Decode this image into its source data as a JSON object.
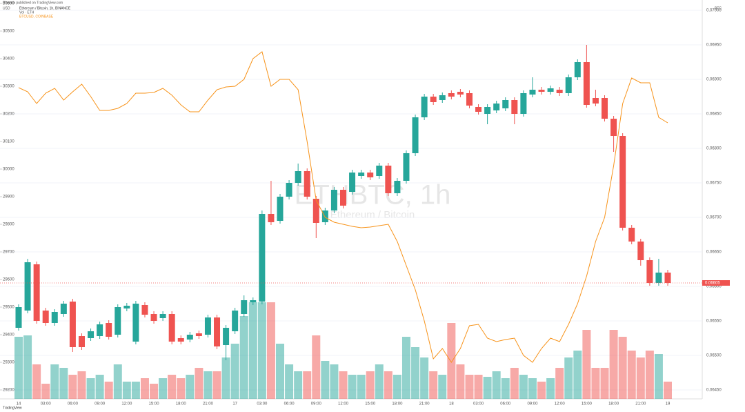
{
  "chart_data": {
    "type": "candlestick",
    "published": "Phoenix published on TradingView.com",
    "title": "Ethereum / Bitcoin, 1h, BINANCE",
    "volume_label": "Vol · ETH",
    "watermark": "ETHBTC, 1h",
    "watermark_sub": "Ethereum / Bitcoin",
    "y_label": "BTC",
    "y2_label": "USD",
    "brand": "TradingView",
    "categories": [
      "14",
      null,
      null,
      "03:00",
      null,
      null,
      "06:00",
      null,
      null,
      "09:00",
      null,
      null,
      "12:00",
      null,
      null,
      "15:00",
      null,
      null,
      "18:00",
      null,
      null,
      "21:00",
      null,
      null,
      "17",
      null,
      null,
      "03:00",
      null,
      null,
      "06:00",
      null,
      null,
      "09:00",
      null,
      null,
      "12:00",
      null,
      null,
      "15:00",
      null,
      null,
      "18:00",
      null,
      null,
      "21:00",
      null,
      null,
      "18",
      null,
      null,
      "03:00",
      null,
      null,
      "06:00",
      null,
      null,
      "09:00",
      null,
      null,
      "12:00",
      null,
      null,
      "15:00",
      null,
      null,
      "18:00",
      null,
      null,
      "21:00",
      null,
      null,
      "19"
    ],
    "open": [
      0.0654,
      0.06565,
      0.06632,
      0.06565,
      0.06547,
      0.0656,
      0.06578,
      0.06528,
      0.06525,
      0.06528,
      0.06547,
      0.0653,
      0.06568,
      0.0652,
      0.06573,
      0.0656,
      0.06554,
      0.0656,
      0.06525,
      0.06523,
      0.06532,
      0.0653,
      0.06555,
      0.06515,
      0.06535,
      0.0656,
      0.06577,
      0.06578,
      0.06705,
      0.06695,
      0.0673,
      0.0675,
      0.06767,
      0.06727,
      0.06693,
      0.0671,
      0.0674,
      0.06737,
      0.0676,
      0.06765,
      0.0676,
      0.06775,
      0.06735,
      0.06753,
      0.06793,
      0.06845,
      0.06875,
      0.0687,
      0.0688,
      0.06882,
      0.0688,
      0.0686,
      0.0685,
      0.06855,
      0.06858,
      0.0687,
      0.0685,
      0.06878,
      0.06885,
      0.06882,
      0.06885,
      0.0688,
      0.06903,
      0.06925,
      0.06873,
      0.06873,
      0.06843,
      0.06818,
      0.06685,
      0.06665,
      0.06638,
      0.06605,
      0.0662
    ],
    "high": [
      0.06574,
      0.0664,
      0.06636,
      0.06569,
      0.06567,
      0.06579,
      0.06582,
      0.06532,
      0.06539,
      0.06549,
      0.06551,
      0.06574,
      0.06576,
      0.06579,
      0.06577,
      0.06564,
      0.06564,
      0.06564,
      0.06529,
      0.06534,
      0.06536,
      0.06559,
      0.06559,
      0.06544,
      0.06569,
      0.06587,
      0.06584,
      0.0671,
      0.06753,
      0.06734,
      0.06754,
      0.06778,
      0.06771,
      0.06731,
      0.06714,
      0.06744,
      0.06744,
      0.06769,
      0.06769,
      0.06769,
      0.06779,
      0.06779,
      0.06757,
      0.06797,
      0.06849,
      0.06879,
      0.06879,
      0.06881,
      0.06884,
      0.06886,
      0.06884,
      0.06864,
      0.06864,
      0.06869,
      0.06874,
      0.06874,
      0.06884,
      0.06903,
      0.06889,
      0.06891,
      0.06889,
      0.06907,
      0.06929,
      0.0695,
      0.06885,
      0.06877,
      0.06847,
      0.06822,
      0.06689,
      0.06669,
      0.06642,
      0.0664,
      0.06624
    ],
    "low": [
      0.06536,
      0.06561,
      0.06546,
      0.06543,
      0.06543,
      0.06556,
      0.06505,
      0.06508,
      0.06521,
      0.06524,
      0.06523,
      0.06526,
      0.06564,
      0.06516,
      0.06555,
      0.06546,
      0.0655,
      0.06516,
      0.06516,
      0.06519,
      0.06524,
      0.06526,
      0.06509,
      0.06493,
      0.06531,
      0.06556,
      0.06573,
      0.06574,
      0.06689,
      0.06691,
      0.06726,
      0.06746,
      0.06726,
      0.0667,
      0.06689,
      0.06706,
      0.06713,
      0.06733,
      0.06756,
      0.06754,
      0.06756,
      0.06731,
      0.06731,
      0.06749,
      0.06789,
      0.06841,
      0.06863,
      0.06866,
      0.06871,
      0.06874,
      0.06858,
      0.06849,
      0.06835,
      0.06851,
      0.06854,
      0.06835,
      0.06846,
      0.06874,
      0.06878,
      0.06878,
      0.06876,
      0.06876,
      0.06899,
      0.06859,
      0.06861,
      0.06839,
      0.06795,
      0.06681,
      0.06661,
      0.0663,
      0.06601,
      0.06601,
      0.06601
    ],
    "close": [
      0.0657,
      0.06635,
      0.0655,
      0.06547,
      0.06563,
      0.06575,
      0.06512,
      0.06512,
      0.06535,
      0.06545,
      0.06527,
      0.0657,
      0.06572,
      0.06575,
      0.06559,
      0.0655,
      0.0656,
      0.0652,
      0.0652,
      0.0653,
      0.06528,
      0.06555,
      0.06513,
      0.0654,
      0.06565,
      0.0658,
      0.0658,
      0.06705,
      0.06693,
      0.0673,
      0.0675,
      0.06767,
      0.0673,
      0.06692,
      0.0671,
      0.0674,
      0.06717,
      0.06765,
      0.06765,
      0.06758,
      0.06775,
      0.06735,
      0.06753,
      0.06793,
      0.06845,
      0.06875,
      0.06867,
      0.06877,
      0.06875,
      0.06878,
      0.06862,
      0.06853,
      0.0686,
      0.06865,
      0.0687,
      0.0685,
      0.0688,
      0.06885,
      0.06882,
      0.06887,
      0.0688,
      0.06903,
      0.06925,
      0.06863,
      0.06865,
      0.06843,
      0.06818,
      0.06685,
      0.06665,
      0.06638,
      0.06605,
      0.0662,
      0.06605
    ],
    "volume": [
      90,
      92,
      50,
      22,
      50,
      45,
      35,
      40,
      30,
      35,
      25,
      50,
      25,
      25,
      30,
      22,
      30,
      35,
      30,
      35,
      45,
      40,
      40,
      60,
      80,
      120,
      140,
      140,
      140,
      80,
      50,
      40,
      40,
      92,
      55,
      50,
      40,
      35,
      35,
      40,
      50,
      40,
      35,
      90,
      75,
      60,
      40,
      35,
      110,
      50,
      35,
      35,
      32,
      40,
      30,
      45,
      35,
      30,
      25,
      30,
      45,
      60,
      70,
      100,
      45,
      45,
      100,
      90,
      70,
      60,
      70,
      65,
      25
    ],
    "up_color": "#26a69a",
    "down_color": "#ef5350",
    "series": [
      {
        "name": "BTCUSD, COINBASE",
        "color": "#f7931a",
        "axis": "y2",
        "values": [
          30295,
          30280,
          30237.5,
          30275,
          30292.5,
          30250,
          30280,
          30307.5,
          30262.5,
          30212.5,
          30212.5,
          30220,
          30237.5,
          30275,
          30275,
          30277.5,
          30292.5,
          30267.5,
          30232.5,
          30207.5,
          30207.5,
          30250,
          30287.5,
          30297.5,
          30300,
          30325,
          30400,
          30425,
          30300,
          30325,
          30325,
          30287.5,
          30100,
          29887.5,
          29825,
          29807.5,
          29800,
          29792.5,
          29787.5,
          29790,
          29795,
          29800,
          29737.5,
          29650,
          29562.5,
          29450,
          29312.5,
          29350,
          29300,
          29350,
          29432.5,
          29437.5,
          29387.5,
          29375,
          29382.5,
          29387.5,
          29325,
          29300,
          29350,
          29387.5,
          29375,
          29437.5,
          29512.5,
          29612.5,
          29737.5,
          29825,
          30012.5,
          30237.5,
          30330,
          30312.5,
          30312.5,
          30187.5,
          30167.5
        ]
      }
    ],
    "ylim": [
      0.0644,
      0.0701
    ],
    "yticks": [
      {
        "value": 0.0645,
        "label": "0.06450"
      },
      {
        "value": 0.065,
        "label": "0.06500"
      },
      {
        "value": 0.0655,
        "label": "0.06550"
      },
      {
        "value": 0.066,
        "label": "0.06600"
      },
      {
        "value": 0.0665,
        "label": "0.06650"
      },
      {
        "value": 0.067,
        "label": "0.06700"
      },
      {
        "value": 0.0675,
        "label": "0.06750"
      },
      {
        "value": 0.068,
        "label": "0.06800"
      },
      {
        "value": 0.0685,
        "label": "0.06850"
      },
      {
        "value": 0.069,
        "label": "0.06900"
      },
      {
        "value": 0.0695,
        "label": "0.06950"
      },
      {
        "value": 0.07,
        "label": "0.07000"
      }
    ],
    "y2lim": [
      29175,
      30600
    ],
    "y2ticks": [
      29200,
      29300,
      29400,
      29500,
      29600,
      29700,
      29800,
      29900,
      30000,
      30100,
      30200,
      30300,
      30400,
      30500,
      30600
    ],
    "grid": true
  }
}
